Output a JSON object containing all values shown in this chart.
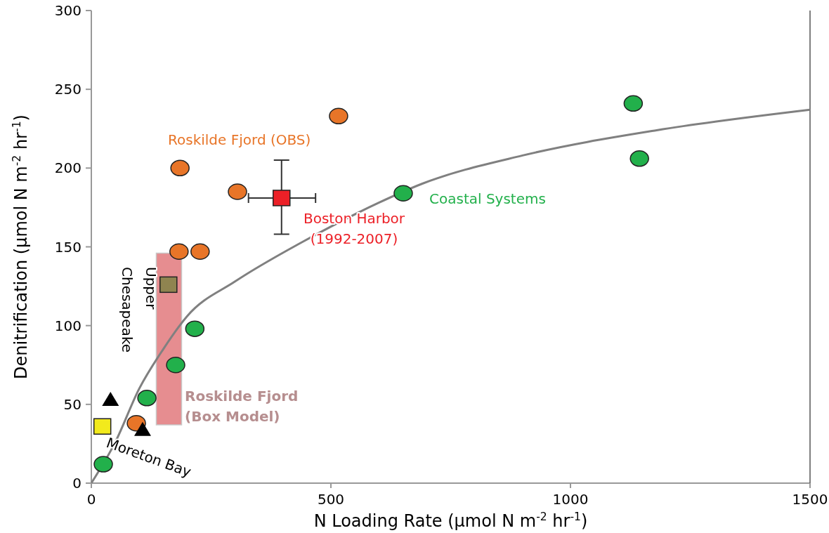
{
  "chart_data": {
    "type": "scatter",
    "xlabel": "N Loading Rate (µmol N m$^{-2}$ hr$^{-1}$)",
    "ylabel": "Denitrification (µmol N m$^{-2}$ hr$^{-1}$)",
    "xlim": [
      0,
      1500
    ],
    "ylim": [
      0,
      300
    ],
    "xticks": [
      0,
      500,
      1000,
      1500
    ],
    "yticks": [
      0,
      50,
      100,
      150,
      200,
      250,
      300
    ],
    "grid": false,
    "legend": false,
    "series": [
      {
        "type": "line",
        "color": "#808080",
        "marker": "none",
        "line_style": "solid",
        "x": [
          0,
          50,
          100,
          150,
          200,
          300,
          440,
          600,
          690,
          900,
          1180,
          1500
        ],
        "values": [
          0,
          26,
          60,
          85,
          106,
          128,
          153,
          178,
          190,
          208,
          224,
          237
        ]
      },
      {
        "name": "Coastal Systems",
        "color": "#22b04b",
        "marker": "circle",
        "x": [
          25,
          116,
          176,
          216,
          651,
          1131,
          1144
        ],
        "values": [
          12,
          54,
          75,
          98,
          184,
          241,
          206
        ]
      },
      {
        "name": "Roskilde Fjord (OBS)",
        "color": "#e87528",
        "marker": "circle",
        "x": [
          94,
          185,
          183,
          227,
          305,
          516
        ],
        "values": [
          38,
          200,
          147,
          147,
          185,
          233
        ]
      },
      {
        "type": "scatter",
        "name": "Boston Harbor\n(1992-2007)",
        "color": "#ec2027",
        "marker": "square",
        "x": [
          397
        ],
        "values": [
          181
        ],
        "errors": [
          [
            158,
            205
          ]
        ],
        "xerrors": [
          [
            328,
            468
          ]
        ]
      },
      {
        "type": "scatter",
        "name": "Upper\nChesapeake",
        "color": "#8f8450",
        "marker": "square",
        "x": [
          161
        ],
        "values": [
          126
        ]
      },
      {
        "type": "scatter",
        "name": "Moreton Bay",
        "color": "#f2ea1c",
        "marker": "square",
        "x": [
          23
        ],
        "values": [
          36
        ]
      },
      {
        "type": "scatter",
        "color": "#000000",
        "marker": "triangle",
        "x": [
          40,
          107
        ],
        "values": [
          53,
          34
        ]
      },
      {
        "type": "bar",
        "name": "Roskilde Fjord\n(Box Model)",
        "color": "#e68d90",
        "x": [
          162
        ],
        "base": [
          37
        ],
        "values": [
          109
        ]
      }
    ]
  }
}
